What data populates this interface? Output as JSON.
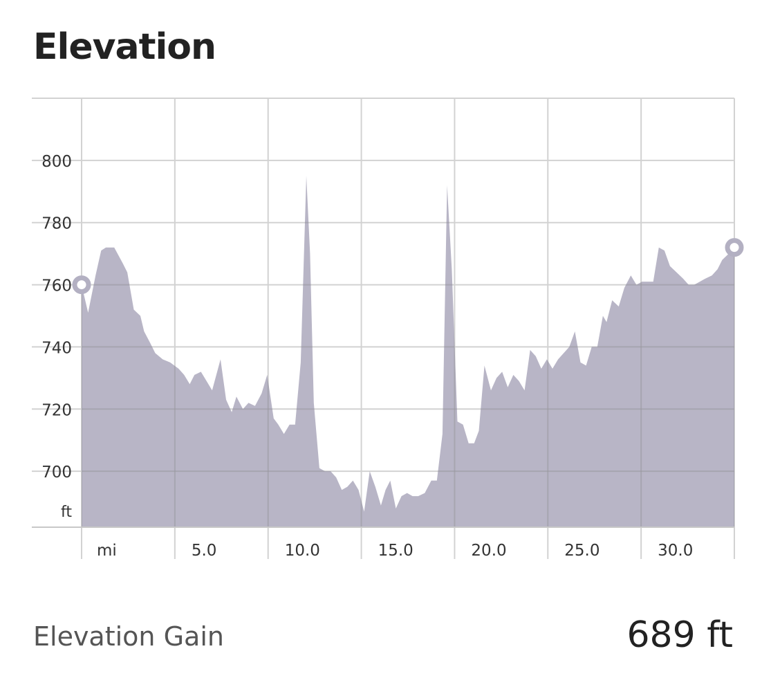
{
  "title": "Elevation",
  "stats": {
    "gain_label": "Elevation Gain",
    "gain_value": "689 ft"
  },
  "colors": {
    "area_fill": "#b8b5c6",
    "grid": "#d2d2d2",
    "grid_over_area": "#99989f",
    "axis_text": "#333333",
    "marker": "#b3b0c2"
  },
  "chart_data": {
    "type": "area",
    "xlabel": "mi",
    "ylabel": "ft",
    "xlim": [
      0,
      35
    ],
    "ylim": [
      682,
      820
    ],
    "x_ticks": [
      5,
      10,
      15,
      20,
      25,
      30
    ],
    "x_tick_labels": [
      "mi",
      "5.0",
      "10.0",
      "15.0",
      "20.0",
      "25.0",
      "30.0"
    ],
    "y_ticks": [
      700,
      720,
      740,
      760,
      780,
      800
    ],
    "y_tick_labels": [
      "ft",
      "700",
      "720",
      "740",
      "760",
      "780",
      "800"
    ],
    "grid": true,
    "markers": [
      "start",
      "end"
    ],
    "series": [
      {
        "x": [
          0,
          0.35,
          0.75,
          1.05,
          1.3,
          1.75,
          2.2,
          2.45,
          2.8,
          3.15,
          3.35,
          3.7,
          3.95,
          4.35,
          4.75,
          5.2,
          5.5,
          5.8,
          6.05,
          6.4,
          6.7,
          7.0,
          7.45,
          7.75,
          8.05,
          8.3,
          8.65,
          8.95,
          9.3,
          9.65,
          9.95,
          10.3,
          10.55,
          10.85,
          11.15,
          11.45,
          11.75,
          12.05,
          12.25,
          12.45,
          12.75,
          13.05,
          13.35,
          13.65,
          13.95,
          14.25,
          14.55,
          14.85,
          15.15,
          15.45,
          15.75,
          16.05,
          16.3,
          16.55,
          16.85,
          17.15,
          17.45,
          17.75,
          18.05,
          18.4,
          18.75,
          19.05,
          19.35,
          19.6,
          19.85,
          20.15,
          20.45,
          20.75,
          21.05,
          21.3,
          21.6,
          21.95,
          22.25,
          22.55,
          22.85,
          23.15,
          23.45,
          23.75,
          24.05,
          24.35,
          24.65,
          24.95,
          25.25,
          25.55,
          25.85,
          26.15,
          26.45,
          26.75,
          27.05,
          27.35,
          27.65,
          27.95,
          28.15,
          28.45,
          28.8,
          29.1,
          29.45,
          29.75,
          30.05,
          30.35,
          30.65,
          30.95,
          31.25,
          31.55,
          31.9,
          32.25,
          32.55,
          32.85,
          33.15,
          33.45,
          33.8,
          34.1,
          34.35,
          34.7,
          35.0
        ],
        "values": [
          760,
          751,
          763,
          771,
          772,
          772,
          767,
          764,
          752,
          750,
          745,
          741,
          738,
          736,
          735,
          733,
          731,
          728,
          731,
          732,
          729,
          726,
          736,
          723,
          719,
          724,
          720,
          722,
          721,
          725,
          731,
          717,
          715,
          712,
          715,
          715,
          735,
          795,
          770,
          722,
          701,
          700,
          700,
          698,
          694,
          695,
          697,
          694,
          687,
          700,
          695,
          689,
          694,
          697,
          688,
          692,
          693,
          692,
          692,
          693,
          697,
          697,
          712,
          792,
          765,
          716,
          715,
          709,
          709,
          713,
          734,
          726,
          730,
          732,
          727,
          731,
          729,
          726,
          739,
          737,
          733,
          736,
          733,
          736,
          738,
          740,
          745,
          735,
          734,
          740,
          740,
          750,
          748,
          755,
          753,
          759,
          763,
          760,
          761,
          761,
          761,
          772,
          771,
          766,
          764,
          762,
          760,
          760,
          761,
          762,
          763,
          765,
          768,
          770,
          772
        ],
        "start_value": 760,
        "end_value": 772
      }
    ]
  }
}
